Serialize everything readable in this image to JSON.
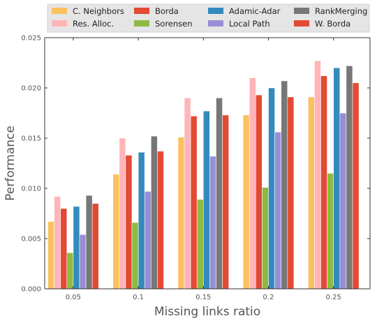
{
  "chart_data": {
    "type": "bar",
    "title": "",
    "xlabel": "Missing links ratio",
    "ylabel": "Performance",
    "categories": [
      "0.05",
      "0.1",
      "0.15",
      "0.2",
      "0.25"
    ],
    "ylim": [
      0,
      0.025
    ],
    "yticks": [
      "0.000",
      "0.005",
      "0.010",
      "0.015",
      "0.020",
      "0.025"
    ],
    "grid": false,
    "legend_position": "top",
    "series": [
      {
        "name": "C. Neighbors",
        "color": "#FBC15E",
        "values": [
          0.0067,
          0.0114,
          0.0151,
          0.0173,
          0.0191
        ]
      },
      {
        "name": "Res. Alloc.",
        "color": "#FFB5B8",
        "values": [
          0.0092,
          0.015,
          0.019,
          0.021,
          0.0227
        ]
      },
      {
        "name": "Borda",
        "color": "#E24A33",
        "values": [
          0.008,
          0.0133,
          0.0172,
          0.0193,
          0.0212
        ]
      },
      {
        "name": "Sorensen",
        "color": "#8EBA42",
        "values": [
          0.0036,
          0.0066,
          0.0089,
          0.0101,
          0.0115
        ]
      },
      {
        "name": "Adamic-Adar",
        "color": "#348ABD",
        "values": [
          0.0082,
          0.0136,
          0.0177,
          0.02,
          0.022
        ]
      },
      {
        "name": "Local Path",
        "color": "#988ED5",
        "values": [
          0.0054,
          0.0097,
          0.0132,
          0.0156,
          0.0175
        ]
      },
      {
        "name": "RankMerging",
        "color": "#777777",
        "values": [
          0.0093,
          0.0152,
          0.019,
          0.0207,
          0.0222
        ]
      },
      {
        "name": "W. Borda",
        "color": "#E24A33",
        "values": [
          0.0085,
          0.0137,
          0.0173,
          0.0191,
          0.0205
        ]
      }
    ]
  }
}
